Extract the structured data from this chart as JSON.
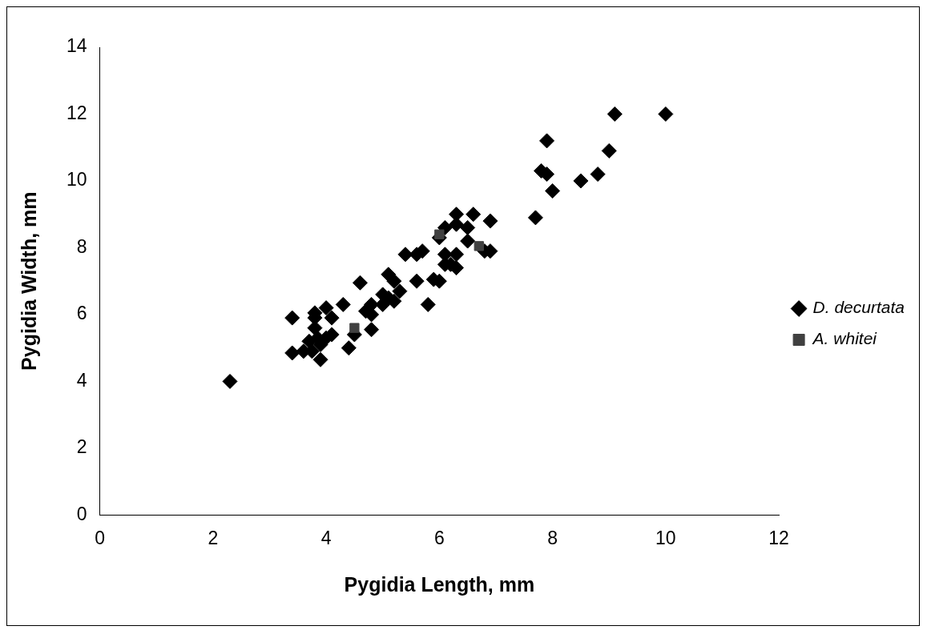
{
  "chart_data": {
    "type": "scatter",
    "xlabel": "Pygidia Length, mm",
    "ylabel": "Pygidia Width, mm",
    "xlim": [
      0,
      12
    ],
    "xticks": [
      0,
      2,
      4,
      6,
      8,
      10,
      12
    ],
    "ylim": [
      0,
      14
    ],
    "yticks": [
      0,
      2,
      4,
      6,
      8,
      10,
      12,
      14
    ],
    "grid": false,
    "legend": "right",
    "series": [
      {
        "name": "D. decurtata",
        "color": "#000000",
        "marker": "diamond",
        "x": [
          2.3,
          3.4,
          3.4,
          3.6,
          3.7,
          3.75,
          3.8,
          3.8,
          3.8,
          3.85,
          3.9,
          3.9,
          4.0,
          4.0,
          4.1,
          4.1,
          4.3,
          4.4,
          4.5,
          4.6,
          4.7,
          4.8,
          4.8,
          4.8,
          5.0,
          5.0,
          5.1,
          5.1,
          5.2,
          5.2,
          5.3,
          5.4,
          5.6,
          5.6,
          5.7,
          5.8,
          5.9,
          6.0,
          6.0,
          6.1,
          6.1,
          6.1,
          6.2,
          6.3,
          6.3,
          6.3,
          6.3,
          6.5,
          6.5,
          6.6,
          6.8,
          6.9,
          6.9,
          7.7,
          7.8,
          7.9,
          7.9,
          8.0,
          8.5,
          8.8,
          9.0,
          9.1,
          10.0
        ],
        "values": [
          4.0,
          4.85,
          5.9,
          4.9,
          5.2,
          4.9,
          5.6,
          5.9,
          6.05,
          5.3,
          5.1,
          4.65,
          5.3,
          6.2,
          5.9,
          5.4,
          6.3,
          5.0,
          5.4,
          6.95,
          6.1,
          6.3,
          5.55,
          6.0,
          6.6,
          6.3,
          7.2,
          6.5,
          7.0,
          6.4,
          6.7,
          7.8,
          7.8,
          7.0,
          7.9,
          6.3,
          7.05,
          7.0,
          8.3,
          8.6,
          7.8,
          7.5,
          7.5,
          8.7,
          9.0,
          7.4,
          7.8,
          8.6,
          8.2,
          9.0,
          7.9,
          8.8,
          7.9,
          8.9,
          10.3,
          10.2,
          11.2,
          9.7,
          10.0,
          10.2,
          10.9,
          12.0,
          12.0
        ]
      },
      {
        "name": "A. whitei",
        "color": "#404040",
        "marker": "square",
        "x": [
          4.5,
          6.0,
          6.7
        ],
        "values": [
          5.6,
          8.4,
          8.05
        ]
      }
    ]
  }
}
